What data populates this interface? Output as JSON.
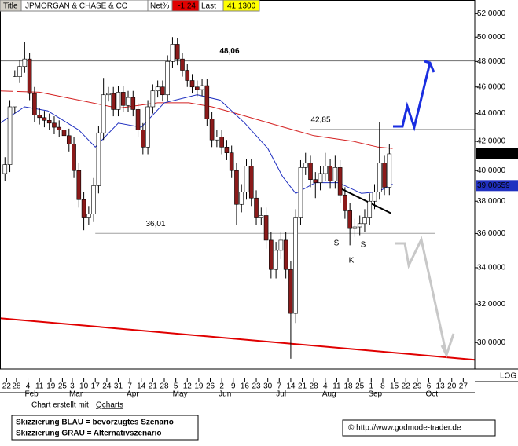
{
  "header": {
    "title_label": "Title",
    "name": "JPMORGAN & CHASE & CO",
    "net_label": "Net%",
    "net": -1.24,
    "last_label": "Last",
    "last": {
      "value": 41.13,
      "label": "41.1300"
    }
  },
  "chart_data": {
    "type": "candlestick",
    "log_scale": true,
    "axis_label": "LOG",
    "xlim": [
      -4,
      285
    ],
    "ylim": [
      28.7,
      53.2
    ],
    "yticks": [
      {
        "value": 30,
        "label": "30.0000"
      },
      {
        "value": 32,
        "label": "32.0000"
      },
      {
        "value": 34,
        "label": "34.0000"
      },
      {
        "value": 36,
        "label": "36.0000"
      },
      {
        "value": 38,
        "label": "38.0000"
      },
      {
        "value": 40,
        "label": "40.0000"
      },
      {
        "value": 42,
        "label": "42.0000"
      },
      {
        "value": 44,
        "label": "44.0000"
      },
      {
        "value": 46,
        "label": "46.0000"
      },
      {
        "value": 48,
        "label": "48.0000"
      },
      {
        "value": 50,
        "label": "50.0000"
      },
      {
        "value": 52,
        "label": "52.0000"
      }
    ],
    "xticks": [
      {
        "value": 0,
        "label": "22"
      },
      {
        "value": 6,
        "label": "28"
      },
      {
        "value": 13,
        "label": "4"
      },
      {
        "value": 20,
        "label": "11"
      },
      {
        "value": 27,
        "label": "19"
      },
      {
        "value": 34,
        "label": "25"
      },
      {
        "value": 40,
        "label": "3"
      },
      {
        "value": 47,
        "label": "10"
      },
      {
        "value": 54,
        "label": "17"
      },
      {
        "value": 61,
        "label": "24"
      },
      {
        "value": 68,
        "label": "31"
      },
      {
        "value": 75,
        "label": "7"
      },
      {
        "value": 82,
        "label": "14"
      },
      {
        "value": 89,
        "label": "21"
      },
      {
        "value": 96,
        "label": "28"
      },
      {
        "value": 103,
        "label": "5"
      },
      {
        "value": 110,
        "label": "12"
      },
      {
        "value": 117,
        "label": "19"
      },
      {
        "value": 124,
        "label": "26"
      },
      {
        "value": 131,
        "label": "2"
      },
      {
        "value": 138,
        "label": "9"
      },
      {
        "value": 145,
        "label": "16"
      },
      {
        "value": 152,
        "label": "23"
      },
      {
        "value": 159,
        "label": "30"
      },
      {
        "value": 166,
        "label": "7"
      },
      {
        "value": 173,
        "label": "14"
      },
      {
        "value": 180,
        "label": "21"
      },
      {
        "value": 187,
        "label": "28"
      },
      {
        "value": 194,
        "label": "4"
      },
      {
        "value": 201,
        "label": "11"
      },
      {
        "value": 208,
        "label": "18"
      },
      {
        "value": 215,
        "label": "25"
      },
      {
        "value": 222,
        "label": "1"
      },
      {
        "value": 229,
        "label": "8"
      },
      {
        "value": 236,
        "label": "15"
      },
      {
        "value": 243,
        "label": "22"
      },
      {
        "value": 250,
        "label": "29"
      },
      {
        "value": 257,
        "label": "6"
      },
      {
        "value": 264,
        "label": "13"
      },
      {
        "value": 271,
        "label": "20"
      },
      {
        "value": 278,
        "label": "27"
      }
    ],
    "month_labels": [
      {
        "value": 13,
        "label": "Feb"
      },
      {
        "value": 40,
        "label": "Mar"
      },
      {
        "value": 75,
        "label": "Apr"
      },
      {
        "value": 103,
        "label": "May"
      },
      {
        "value": 131,
        "label": "Jun"
      },
      {
        "value": 166,
        "label": "Jul"
      },
      {
        "value": 194,
        "label": "Aug"
      },
      {
        "value": 222,
        "label": "Sep"
      },
      {
        "value": 257,
        "label": "Oct"
      }
    ],
    "up_color": "#ffffff",
    "down_color": "#8b1a1a",
    "x": [
      -1,
      2,
      5,
      8,
      11,
      14,
      17,
      20,
      23,
      26,
      29,
      32,
      35,
      38,
      41,
      44,
      47,
      50,
      53,
      56,
      59,
      62,
      65,
      68,
      71,
      74,
      77,
      80,
      83,
      86,
      89,
      92,
      95,
      98,
      101,
      104,
      107,
      110,
      113,
      116,
      119,
      122,
      125,
      128,
      131,
      134,
      137,
      140,
      143,
      146,
      149,
      152,
      155,
      158,
      161,
      164,
      167,
      170,
      173,
      176,
      179,
      182,
      185,
      188,
      191,
      194,
      197,
      200,
      203,
      206,
      209,
      212,
      215,
      218,
      221,
      224,
      227,
      230,
      233
    ],
    "open": [
      39.8,
      40.4,
      44.5,
      46.8,
      47.6,
      48.2,
      45.5,
      43.9,
      43.7,
      43.5,
      43.3,
      43.0,
      42.8,
      42.4,
      41.8,
      40.0,
      38.1,
      37.0,
      37.2,
      39.0,
      42.6,
      45.4,
      45.5,
      44.3,
      45.6,
      44.6,
      45.2,
      44.3,
      42.8,
      41.6,
      44.5,
      45.7,
      46.0,
      45.4,
      48.0,
      49.4,
      48.2,
      47.3,
      46.5,
      46.0,
      45.8,
      46.1,
      43.6,
      42.1,
      42.3,
      41.6,
      41.2,
      40.0,
      37.8,
      38.6,
      40.3,
      38.2,
      37.0,
      37.1,
      35.6,
      33.9,
      35.0,
      35.6,
      33.9,
      31.5,
      37.0,
      40.2,
      40.5,
      39.4,
      39.2,
      39.8,
      40.3,
      39.3,
      40.2,
      38.4,
      37.4,
      36.3,
      36.4,
      36.6,
      37.0,
      38.0,
      38.6,
      40.5,
      38.9
    ],
    "high": [
      40.9,
      45.0,
      47.3,
      48.1,
      49.6,
      48.7,
      46.0,
      44.4,
      44.2,
      44.0,
      43.8,
      43.5,
      43.3,
      42.9,
      42.3,
      40.5,
      38.6,
      37.7,
      39.5,
      43.1,
      46.7,
      46.0,
      46.0,
      46.1,
      46.1,
      45.7,
      45.7,
      44.8,
      43.3,
      45.0,
      46.2,
      46.5,
      46.5,
      48.5,
      50.0,
      49.9,
      48.7,
      47.8,
      47.0,
      46.5,
      46.6,
      46.6,
      44.1,
      42.8,
      42.8,
      42.1,
      41.7,
      40.5,
      39.1,
      40.8,
      40.8,
      38.7,
      37.6,
      37.6,
      36.1,
      35.5,
      36.1,
      36.1,
      34.4,
      37.5,
      40.7,
      41.2,
      41.0,
      39.9,
      40.3,
      41.2,
      40.8,
      41.0,
      40.7,
      38.9,
      37.9,
      36.9,
      37.1,
      37.5,
      38.5,
      39.1,
      43.4,
      41.0,
      41.8
    ],
    "low": [
      39.3,
      39.9,
      44.0,
      46.3,
      47.1,
      45.0,
      43.4,
      43.2,
      43.0,
      42.8,
      42.5,
      42.3,
      41.9,
      41.3,
      39.5,
      37.6,
      36.2,
      36.5,
      36.7,
      38.5,
      42.1,
      44.9,
      43.8,
      43.8,
      44.1,
      44.1,
      43.8,
      42.3,
      41.1,
      41.1,
      44.0,
      45.2,
      44.9,
      44.9,
      47.5,
      47.7,
      46.8,
      46.0,
      45.5,
      45.3,
      45.3,
      43.1,
      41.6,
      41.6,
      41.1,
      40.7,
      39.5,
      36.5,
      37.3,
      38.1,
      37.7,
      36.5,
      36.5,
      35.1,
      33.4,
      33.4,
      34.5,
      33.4,
      29.2,
      31.0,
      36.5,
      39.7,
      38.9,
      38.2,
      38.7,
      39.3,
      38.8,
      38.8,
      37.9,
      36.9,
      35.3,
      35.8,
      35.9,
      36.1,
      36.5,
      37.5,
      38.1,
      38.4,
      38.4
    ],
    "close": [
      40.4,
      44.5,
      46.8,
      47.6,
      48.2,
      45.5,
      43.9,
      43.7,
      43.5,
      43.3,
      43.0,
      42.8,
      42.4,
      41.8,
      40.0,
      38.1,
      37.0,
      37.2,
      39.0,
      42.6,
      45.4,
      45.5,
      44.3,
      45.6,
      44.6,
      45.2,
      44.3,
      42.8,
      41.6,
      44.5,
      45.7,
      46.0,
      45.4,
      48.0,
      49.4,
      48.2,
      47.3,
      46.5,
      46.0,
      45.8,
      46.1,
      43.6,
      42.1,
      42.3,
      41.6,
      41.2,
      40.0,
      37.8,
      38.6,
      40.3,
      38.2,
      37.0,
      37.1,
      35.6,
      33.9,
      35.0,
      35.6,
      33.9,
      31.5,
      37.0,
      40.2,
      40.5,
      39.4,
      39.2,
      39.8,
      40.3,
      39.3,
      40.2,
      38.4,
      37.4,
      36.3,
      36.4,
      36.6,
      37.0,
      38.0,
      38.6,
      40.5,
      38.9,
      41.13
    ],
    "ma": [
      {
        "color": "#d42020",
        "x": [
          -4,
          20,
          44,
          68,
          92,
          111,
          125,
          140,
          163,
          187,
          211,
          226,
          235
        ],
        "values": [
          45.7,
          45.6,
          45.0,
          44.4,
          44.8,
          44.8,
          44.5,
          44.0,
          43.2,
          42.4,
          42.0,
          41.6,
          41.5
        ]
      },
      {
        "color": "#2030c0",
        "x": [
          -4,
          11,
          25,
          44,
          54,
          68,
          82,
          96,
          116,
          130,
          145,
          159,
          168,
          176,
          188,
          202,
          216,
          226,
          235
        ],
        "values": [
          43.3,
          44.5,
          44.2,
          42.8,
          41.6,
          43.3,
          43.0,
          44.8,
          45.4,
          45.0,
          43.3,
          41.5,
          39.6,
          38.5,
          39.2,
          39.2,
          38.5,
          38.6,
          39.1
        ]
      }
    ],
    "levels": [
      {
        "value": 48.06,
        "label": "48,06",
        "x": [
          -4,
          285
        ],
        "color": "#808080"
      },
      {
        "value": 42.85,
        "label": "42,85",
        "x": [
          185,
          285
        ],
        "color": "#a0a0a0"
      },
      {
        "value": 36.01,
        "label": "36,01",
        "x": [
          54,
          261
        ],
        "color": "#a0a0a0"
      }
    ],
    "trendlines": [
      {
        "color": "#e00000",
        "x": [
          -4,
          285
        ],
        "values": [
          31.25,
          29.15
        ]
      },
      {
        "color": "#000000",
        "x": [
          203,
          234
        ],
        "values": [
          38.84,
          37.24
        ]
      }
    ],
    "annotations": [
      "S",
      "K",
      "S"
    ],
    "price_tags": [
      {
        "value": 41.13,
        "label": "41.1300",
        "color": "#000000"
      },
      {
        "value": 39.00659,
        "color": "#2030c0"
      }
    ]
  },
  "footer": {
    "credit": "Chart erstellt mit",
    "tool": "Qcharts",
    "legend": [
      "Skizzierung BLAU = bevorzugtes Szenario",
      "Skizzierung GRAU = Alternativszenario"
    ],
    "source": "© http://www.godmode-trader.de"
  }
}
